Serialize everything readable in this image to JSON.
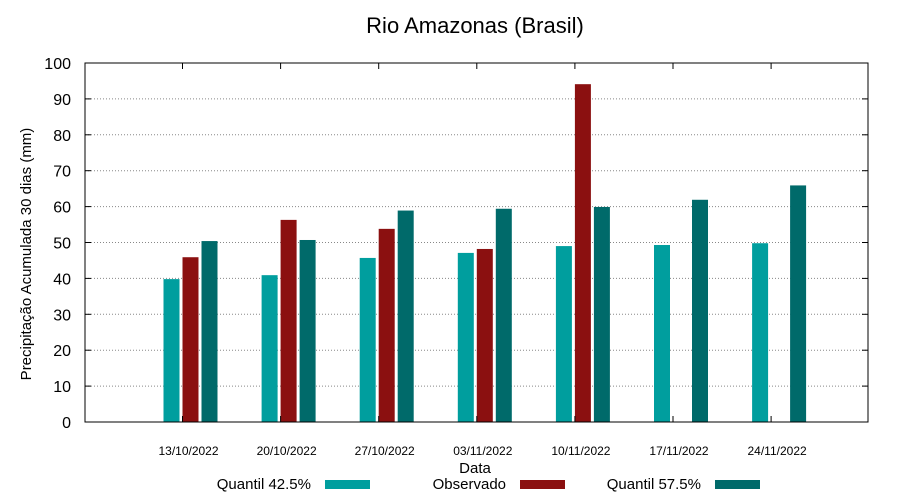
{
  "chart_data": {
    "type": "bar",
    "title": "Rio Amazonas (Brasil)",
    "xlabel": "Data",
    "ylabel": "Precipitação Acumulada 30 dias (mm)",
    "ylim": [
      0,
      100
    ],
    "yticks": [
      0,
      10,
      20,
      30,
      40,
      50,
      60,
      70,
      80,
      90,
      100
    ],
    "grid": true,
    "legend_position": "bottom",
    "categories": [
      "13/10/2022",
      "20/10/2022",
      "27/10/2022",
      "03/11/2022",
      "10/11/2022",
      "17/11/2022",
      "24/11/2022"
    ],
    "series": [
      {
        "name": "Quantil 42.5%",
        "color": "#009e9e",
        "values": [
          39.8,
          40.9,
          45.7,
          47.1,
          49.0,
          49.3,
          49.8
        ]
      },
      {
        "name": "Observado",
        "color": "#8b1010",
        "values": [
          45.9,
          56.3,
          53.8,
          48.2,
          94.1,
          null,
          null
        ]
      },
      {
        "name": "Quantil 57.5%",
        "color": "#006a6a",
        "values": [
          50.4,
          50.7,
          58.9,
          59.4,
          59.9,
          61.9,
          65.9
        ]
      }
    ]
  }
}
